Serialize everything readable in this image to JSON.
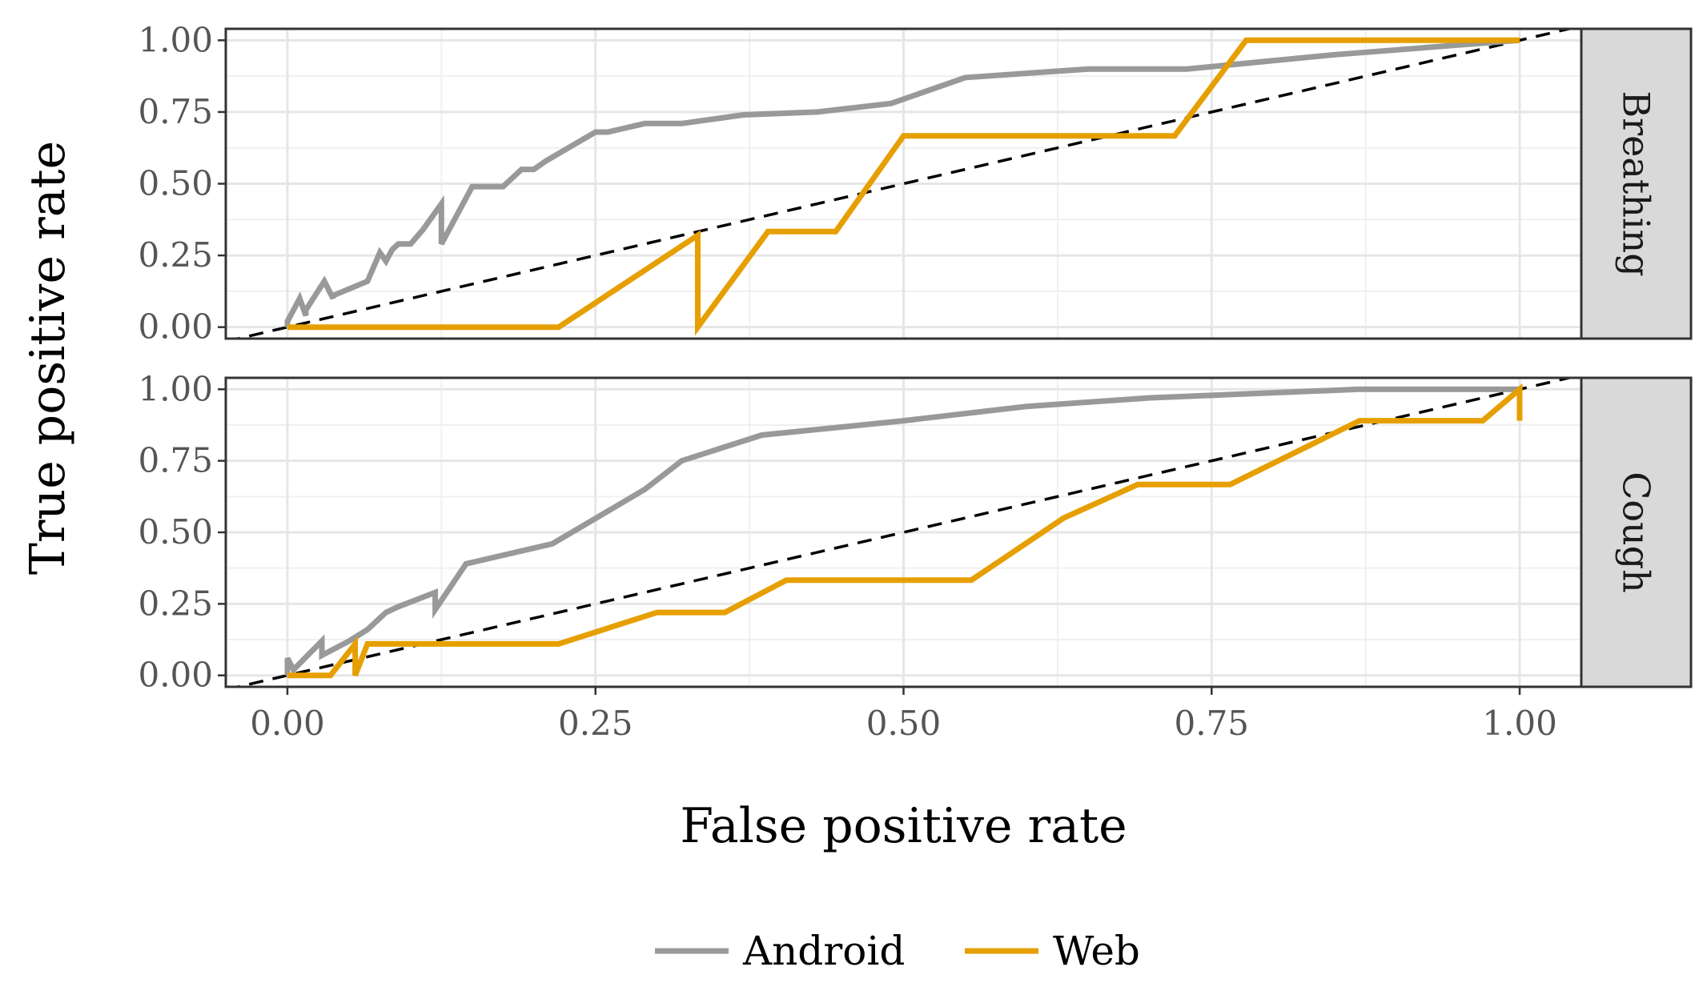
{
  "chart_data": {
    "type": "line",
    "xlabel": "False positive rate",
    "ylabel": "True positive rate",
    "xlim": [
      -0.05,
      1.05
    ],
    "ylim": [
      -0.04,
      1.04
    ],
    "x_ticks": [
      0,
      0.25,
      0.5,
      0.75,
      1
    ],
    "x_tick_labels": [
      "0.00",
      "0.25",
      "0.50",
      "0.75",
      "1.00"
    ],
    "y_ticks": [
      0,
      0.25,
      0.5,
      0.75,
      1
    ],
    "y_tick_labels": [
      "0.00",
      "0.25",
      "0.50",
      "0.75",
      "1.00"
    ],
    "reference_line": {
      "style": "dashed",
      "color": "#000000",
      "x": [
        -0.05,
        1.05
      ],
      "y": [
        -0.05,
        1.05
      ]
    },
    "legend": {
      "position": "bottom",
      "entries": [
        {
          "name": "Android",
          "color": "#999999"
        },
        {
          "name": "Web",
          "color": "#E69F00"
        }
      ]
    },
    "panels": [
      {
        "label": "Breathing",
        "series": [
          {
            "name": "Android",
            "color": "#999999",
            "x": [
              0,
              0,
              0.01,
              0.015,
              0.015,
              0.03,
              0.037,
              0.037,
              0.065,
              0.075,
              0.08,
              0.085,
              0.09,
              0.1,
              0.11,
              0.125,
              0.125,
              0.15,
              0.175,
              0.19,
              0.2,
              0.21,
              0.25,
              0.26,
              0.29,
              0.32,
              0.37,
              0.43,
              0.49,
              0.55,
              0.65,
              0.73,
              0.85,
              1.0
            ],
            "y": [
              0,
              0.02,
              0.1,
              0.04,
              0.06,
              0.16,
              0.1,
              0.11,
              0.16,
              0.26,
              0.23,
              0.27,
              0.29,
              0.29,
              0.34,
              0.43,
              0.29,
              0.49,
              0.49,
              0.55,
              0.55,
              0.58,
              0.68,
              0.68,
              0.71,
              0.71,
              0.74,
              0.75,
              0.78,
              0.87,
              0.9,
              0.9,
              0.95,
              1.0
            ]
          },
          {
            "name": "Web",
            "color": "#E69F00",
            "x": [
              0,
              0.22,
              0.333,
              0.333,
              0.39,
              0.445,
              0.5,
              0.72,
              0.778,
              1.0
            ],
            "y": [
              0,
              0,
              0.32,
              0,
              0.333,
              0.333,
              0.667,
              0.667,
              1.0,
              1.0
            ]
          }
        ]
      },
      {
        "label": "Cough",
        "series": [
          {
            "name": "Android",
            "color": "#999999",
            "x": [
              0,
              0,
              0.005,
              0.028,
              0.028,
              0.05,
              0.065,
              0.08,
              0.09,
              0.12,
              0.12,
              0.145,
              0.215,
              0.29,
              0.32,
              0.385,
              0.5,
              0.6,
              0.7,
              0.87,
              1.0
            ],
            "y": [
              0,
              0.06,
              0.02,
              0.12,
              0.07,
              0.12,
              0.16,
              0.22,
              0.24,
              0.29,
              0.23,
              0.39,
              0.46,
              0.65,
              0.75,
              0.84,
              0.89,
              0.94,
              0.97,
              1.0,
              1.0
            ]
          },
          {
            "name": "Web",
            "color": "#E69F00",
            "x": [
              0,
              0.035,
              0.055,
              0.055,
              0.065,
              0.22,
              0.3,
              0.355,
              0.405,
              0.555,
              0.63,
              0.69,
              0.765,
              0.87,
              0.97,
              1.0,
              1.0
            ],
            "y": [
              0,
              0,
              0.11,
              0,
              0.11,
              0.11,
              0.22,
              0.22,
              0.333,
              0.333,
              0.55,
              0.667,
              0.667,
              0.89,
              0.89,
              1.0,
              0.89
            ]
          }
        ]
      }
    ]
  }
}
